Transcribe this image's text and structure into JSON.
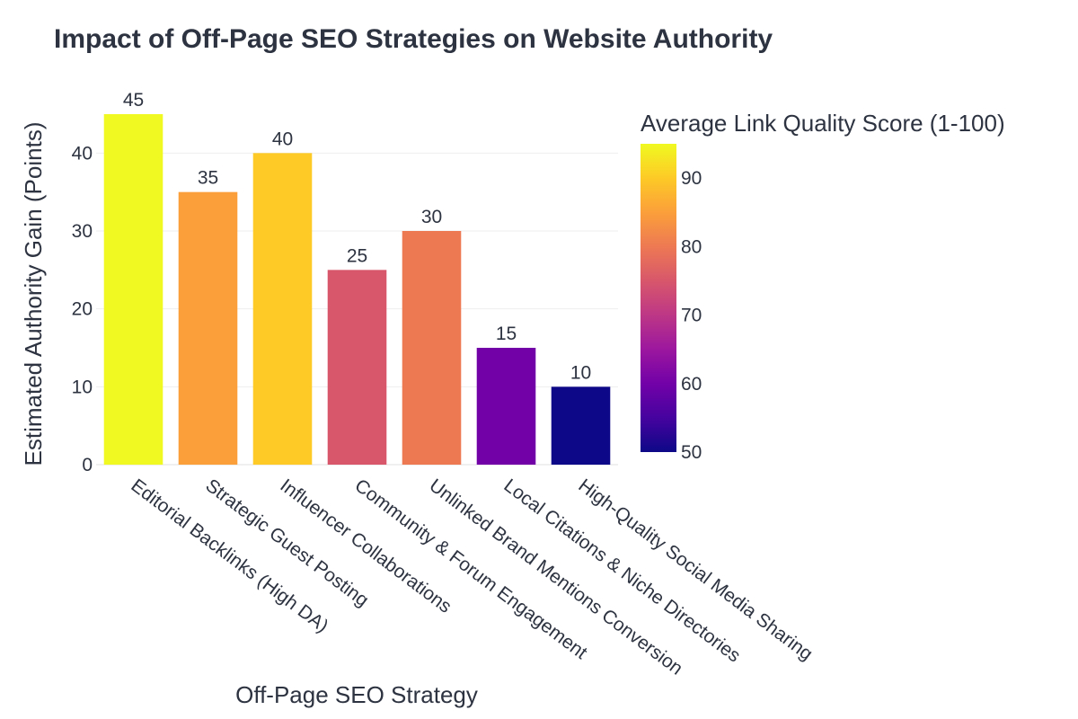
{
  "chart_data": {
    "type": "bar",
    "title": "Impact of Off-Page SEO Strategies on Website Authority",
    "xlabel": "Off-Page SEO Strategy",
    "ylabel": "Estimated Authority Gain (Points)",
    "categories": [
      "Editorial Backlinks (High DA)",
      "Strategic Guest Posting",
      "Influencer Collaborations",
      "Community & Forum Engagement",
      "Unlinked Brand Mentions Conversion",
      "Local Citations & Niche Directories",
      "High-Quality Social Media Sharing"
    ],
    "values": [
      45,
      35,
      40,
      25,
      30,
      15,
      10
    ],
    "color_values": [
      95,
      85,
      90,
      75,
      80,
      60,
      50
    ],
    "data_labels": [
      "45",
      "35",
      "40",
      "25",
      "30",
      "15",
      "10"
    ],
    "ylim": [
      0,
      45
    ],
    "yticks": [
      0,
      10,
      20,
      30,
      40
    ],
    "grid": true,
    "colorbar": {
      "title": "Average Link Quality Score (1-100)",
      "range": [
        50,
        95
      ],
      "ticks": [
        50,
        60,
        70,
        80,
        90
      ],
      "colorscale": "Plasma",
      "stops": [
        "#0d0887",
        "#46039f",
        "#7201a8",
        "#9c179e",
        "#bd3786",
        "#d8576b",
        "#ed7953",
        "#fb9f3a",
        "#fdca26",
        "#f0f921"
      ],
      "placement": "right"
    }
  }
}
